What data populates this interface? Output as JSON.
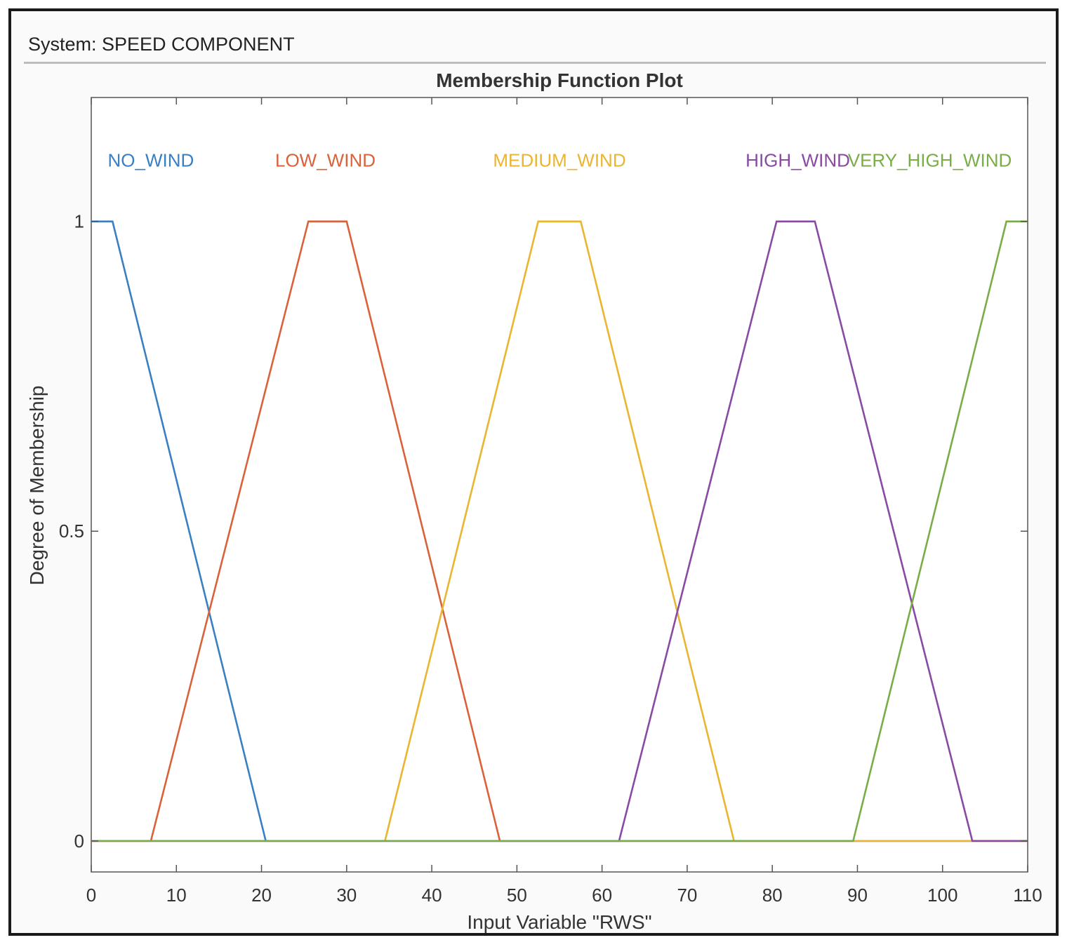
{
  "window": {
    "system_label": "System: SPEED COMPONENT"
  },
  "chart_data": {
    "type": "line",
    "title": "Membership Function Plot",
    "xlabel": "Input Variable \"RWS\"",
    "ylabel": "Degree of Membership",
    "xlim": [
      0,
      110
    ],
    "ylim": [
      -0.05,
      1.2
    ],
    "xticks": [
      0,
      10,
      20,
      30,
      40,
      50,
      60,
      70,
      80,
      90,
      100,
      110
    ],
    "yticks": [
      0,
      0.5,
      1
    ],
    "ytick_labels": [
      "0",
      "0.5",
      "1"
    ],
    "grid": false,
    "series": [
      {
        "name": "NO_WIND",
        "color": "#3a7fc1",
        "x": [
          0,
          2.5,
          20.5,
          110
        ],
        "y": [
          1,
          1,
          0,
          0
        ]
      },
      {
        "name": "LOW_WIND",
        "color": "#d9623a",
        "x": [
          0,
          7,
          25.5,
          30,
          48,
          110
        ],
        "y": [
          0,
          0,
          1,
          1,
          0,
          0
        ]
      },
      {
        "name": "MEDIUM_WIND",
        "color": "#eab530",
        "x": [
          0,
          34.5,
          52.5,
          57.5,
          75.5,
          110
        ],
        "y": [
          0,
          0,
          1,
          1,
          0,
          0
        ]
      },
      {
        "name": "HIGH_WIND",
        "color": "#8a4aa3",
        "x": [
          0,
          62,
          80.5,
          85,
          103.5,
          110
        ],
        "y": [
          0,
          0,
          1,
          1,
          0,
          0
        ]
      },
      {
        "name": "VERY_HIGH_WIND",
        "color": "#79ad47",
        "x": [
          0,
          89.5,
          107.5,
          110
        ],
        "y": [
          0,
          0,
          1,
          1
        ]
      }
    ],
    "series_labels": [
      {
        "text": "NO_WIND",
        "x": 7
      },
      {
        "text": "LOW_WIND",
        "x": 27.5
      },
      {
        "text": "MEDIUM_WIND",
        "x": 55
      },
      {
        "text": "HIGH_WIND",
        "x": 83
      },
      {
        "text": "VERY_HIGH_WIND",
        "x": 98.5
      }
    ]
  }
}
